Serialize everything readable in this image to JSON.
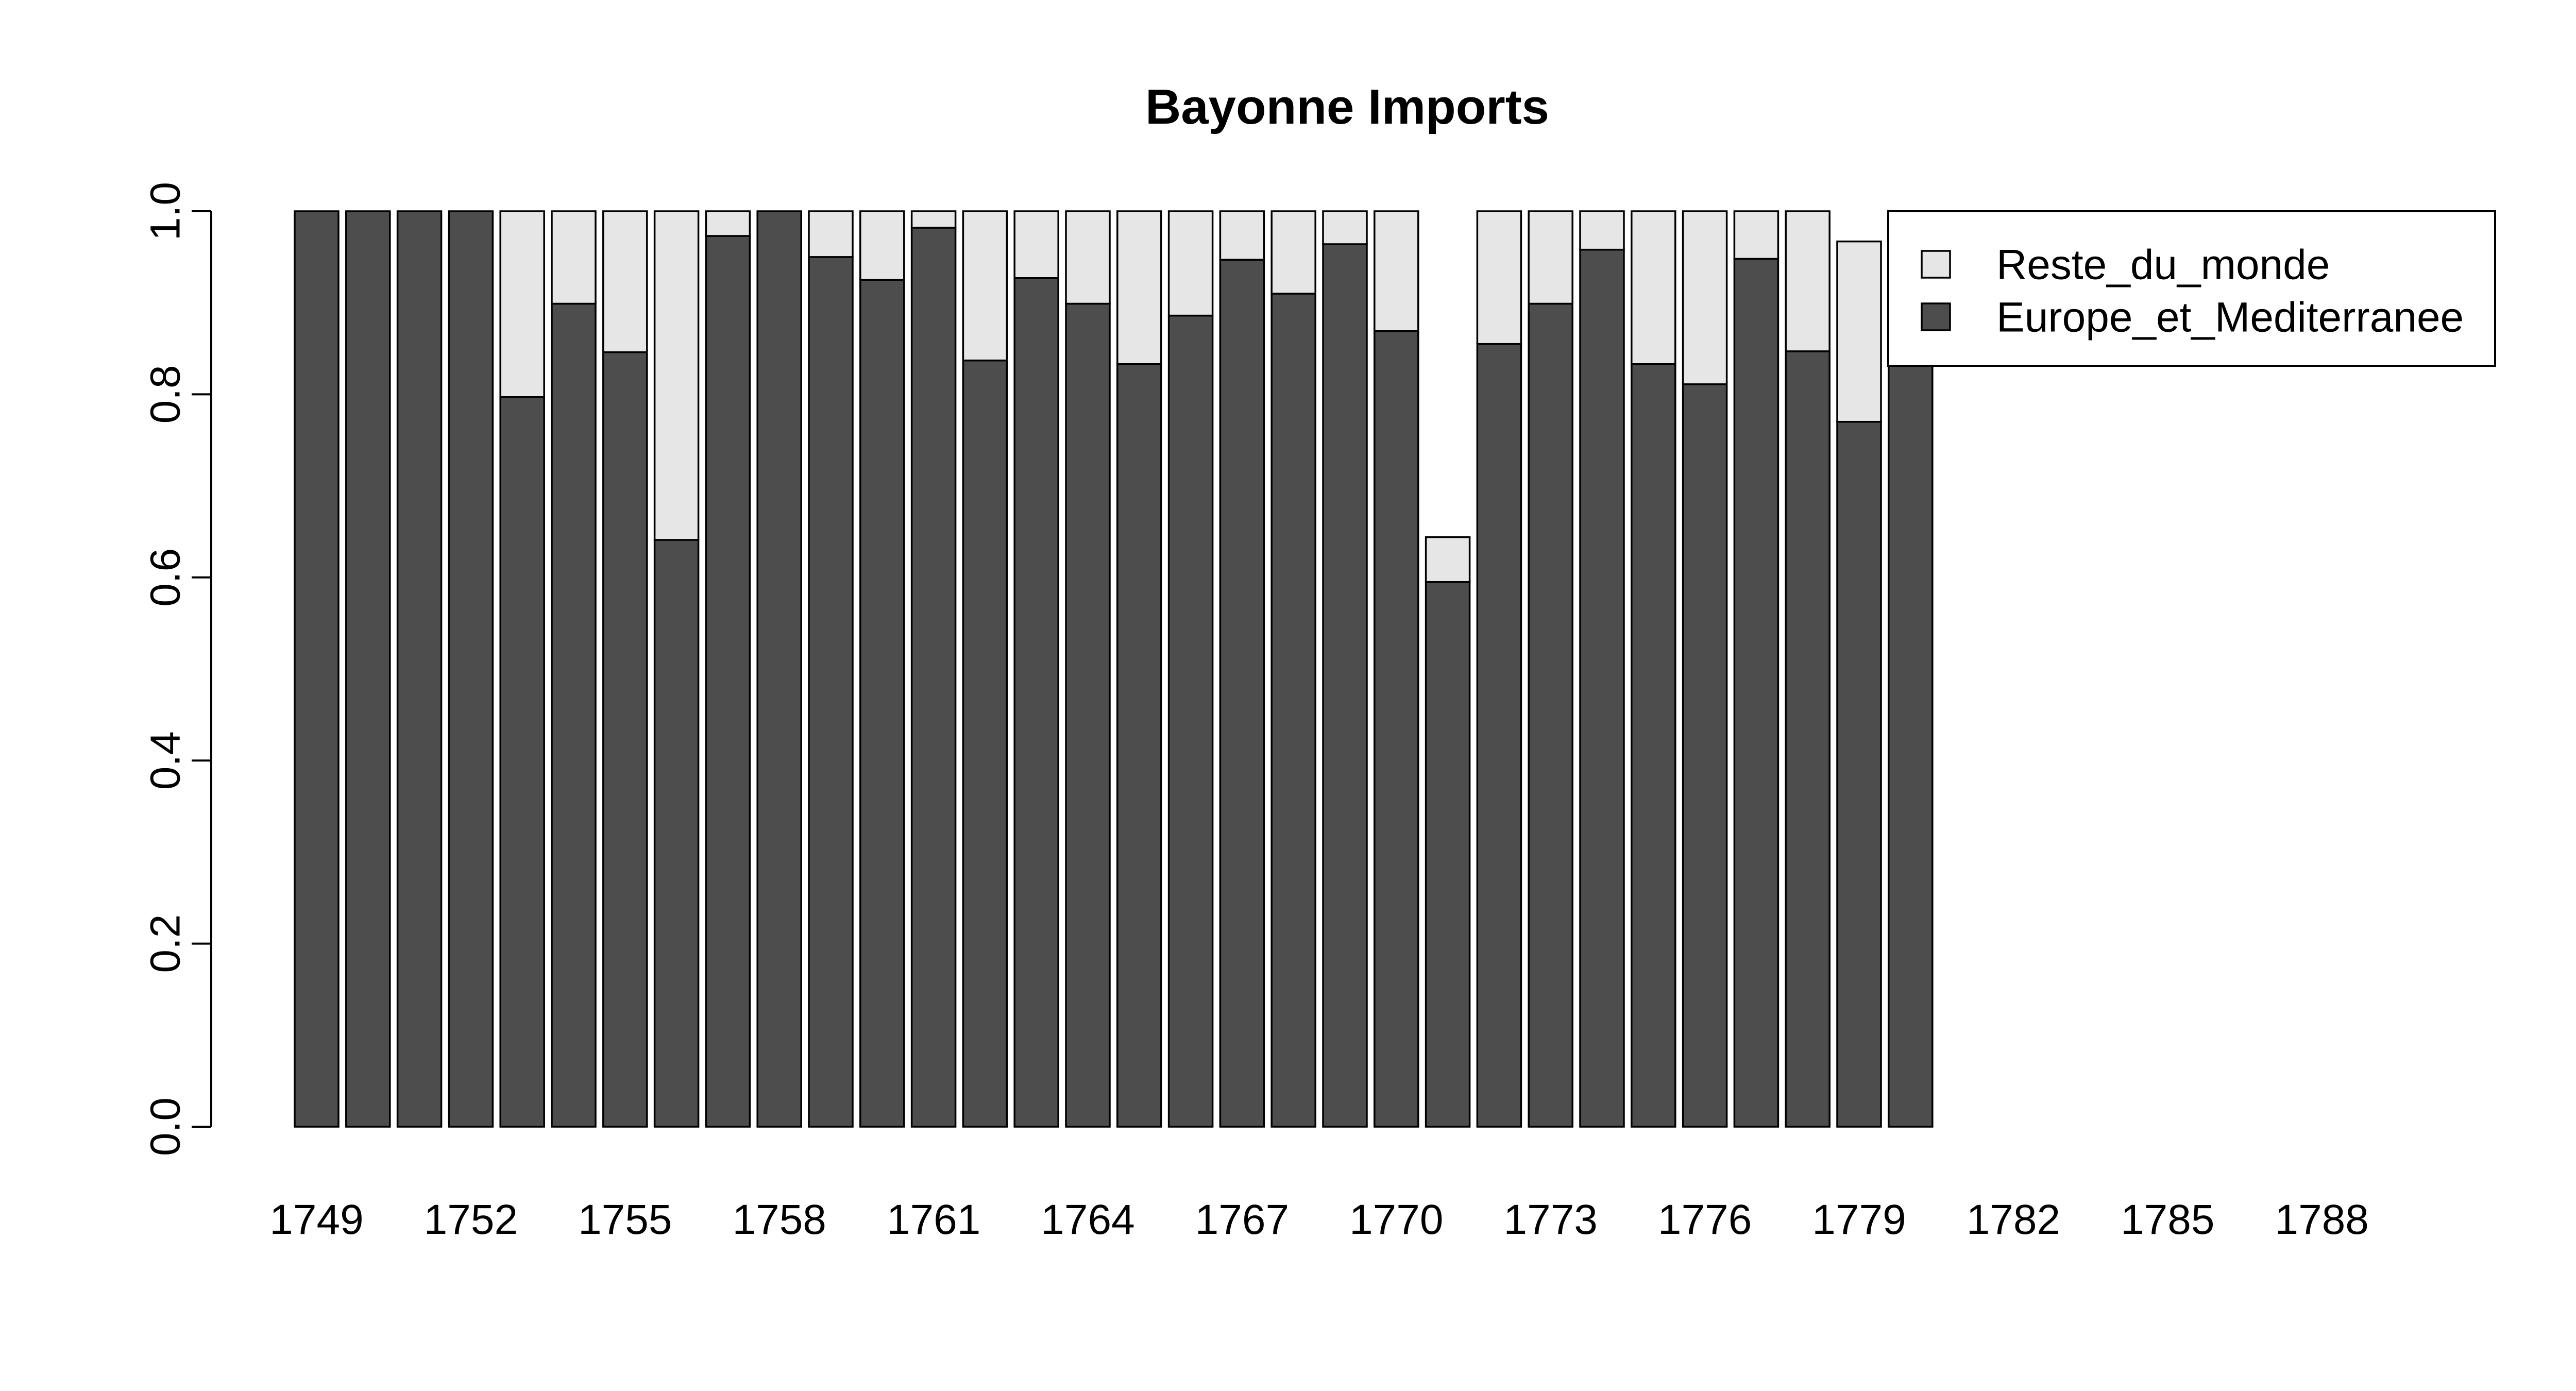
{
  "chart_data": {
    "type": "bar",
    "stacked": true,
    "title": "Bayonne Imports",
    "xlabel": "",
    "ylabel": "",
    "ylim": [
      0,
      1
    ],
    "yticks": [
      "0.0",
      "0.2",
      "0.4",
      "0.6",
      "0.8",
      "1.0"
    ],
    "categories": [
      1749,
      1750,
      1751,
      1752,
      1753,
      1754,
      1755,
      1756,
      1757,
      1758,
      1759,
      1760,
      1761,
      1762,
      1763,
      1764,
      1765,
      1766,
      1767,
      1768,
      1769,
      1770,
      1771,
      1772,
      1773,
      1774,
      1775,
      1776,
      1777,
      1778,
      1779,
      1780,
      1781,
      1782,
      1783,
      1784,
      1785,
      1786,
      1787,
      1788,
      1789
    ],
    "xtick_labels": [
      "1749",
      "1752",
      "1755",
      "1758",
      "1761",
      "1764",
      "1767",
      "1770",
      "1773",
      "1776",
      "1779",
      "1782",
      "1785",
      "1788"
    ],
    "series": [
      {
        "name": "Europe_et_Mediterranee",
        "color": "#4d4d4d",
        "values": [
          1.0,
          1.0,
          1.0,
          1.0,
          0.797,
          0.899,
          0.846,
          0.641,
          0.973,
          1.0,
          0.95,
          0.925,
          0.982,
          0.837,
          0.927,
          0.899,
          0.833,
          0.886,
          0.947,
          0.91,
          0.964,
          0.869,
          0.595,
          0.855,
          0.899,
          0.958,
          0.833,
          0.811,
          0.948,
          0.847,
          0.77,
          0.88,
          null,
          null,
          null,
          null,
          null,
          null,
          null,
          null,
          null
        ]
      },
      {
        "name": "Reste_du_monde",
        "color": "#e6e6e6",
        "values": [
          0.0,
          0.0,
          0.0,
          0.0,
          0.203,
          0.101,
          0.154,
          0.359,
          0.027,
          0.0,
          0.05,
          0.075,
          0.018,
          0.163,
          0.073,
          0.101,
          0.167,
          0.114,
          0.053,
          0.09,
          0.036,
          0.131,
          0.049,
          0.145,
          0.101,
          0.042,
          0.167,
          0.189,
          0.052,
          0.153,
          0.197,
          0.12,
          null,
          null,
          null,
          null,
          null,
          null,
          null,
          null,
          null
        ]
      }
    ],
    "legend": {
      "position": "top-right",
      "entries": [
        {
          "label": "Reste_du_monde",
          "color": "#e6e6e6"
        },
        {
          "label": "Europe_et_Mediterranee",
          "color": "#4d4d4d"
        }
      ]
    },
    "grid": false
  }
}
